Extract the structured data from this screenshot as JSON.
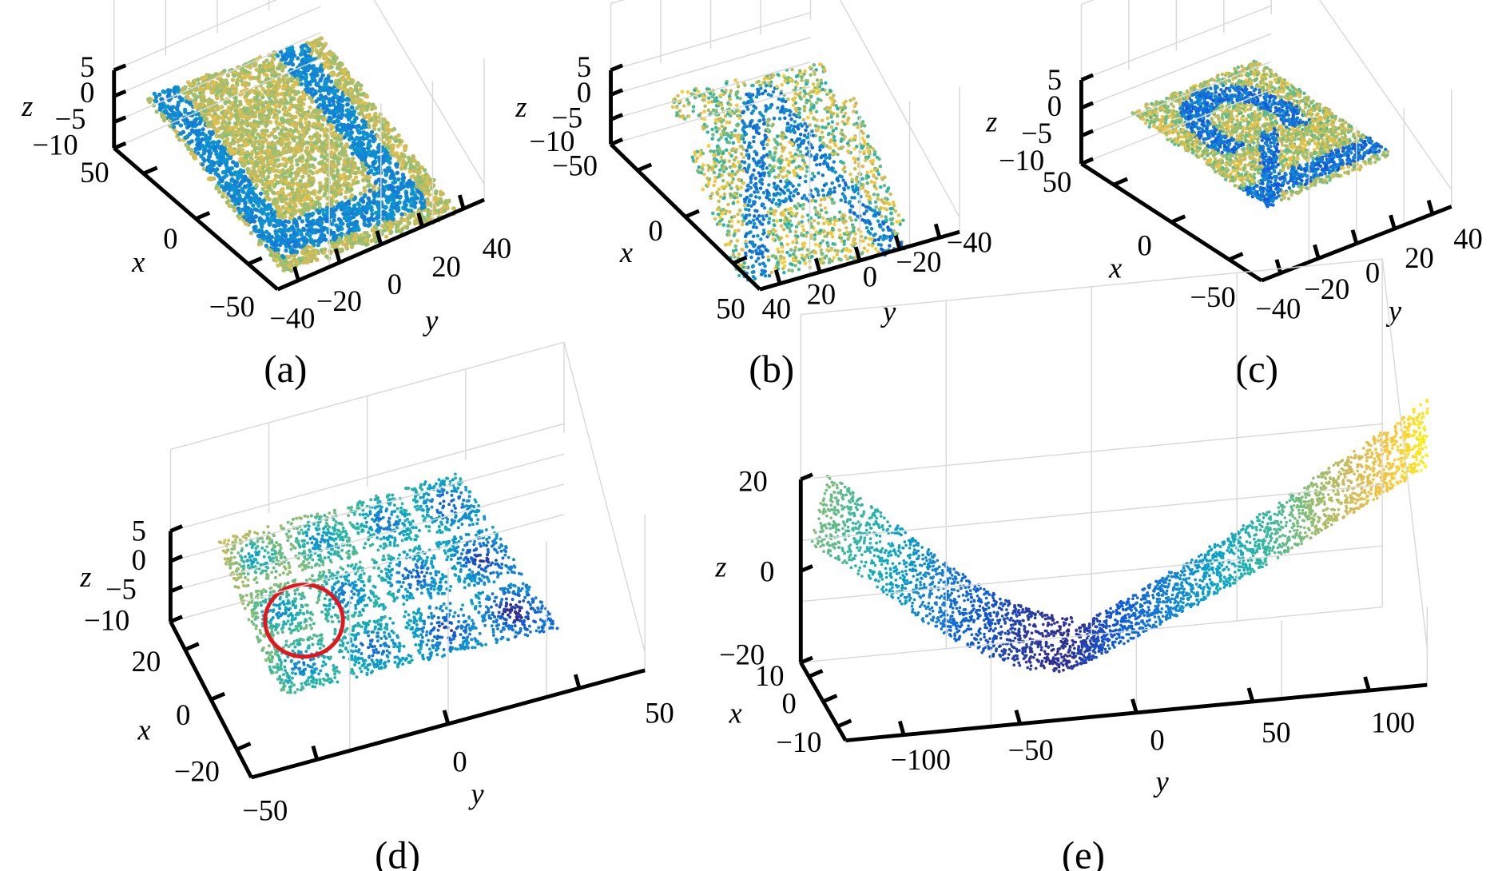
{
  "chart_data": [
    {
      "type": "scatter3d",
      "panel_label": "(a)",
      "colormap": "parula",
      "grid": true,
      "xlabel": "x",
      "ylabel": "y",
      "zlabel": "z",
      "xticks": [
        "50",
        "0",
        "−50"
      ],
      "yticks": [
        "−40",
        "−20",
        "0",
        "20",
        "40"
      ],
      "zticks": [
        "5",
        "0",
        "−5",
        "−10"
      ],
      "xlim": [
        -50,
        50
      ],
      "ylim": [
        -40,
        40
      ],
      "zlim": [
        -10,
        5
      ]
    },
    {
      "type": "scatter3d",
      "panel_label": "(b)",
      "colormap": "parula",
      "grid": true,
      "xlabel": "x",
      "ylabel": "y",
      "zlabel": "z",
      "xticks": [
        "−50",
        "0",
        "50"
      ],
      "yticks": [
        "40",
        "20",
        "0",
        "−20",
        "−40"
      ],
      "zticks": [
        "5",
        "0",
        "−5",
        "−10"
      ],
      "xlim": [
        -50,
        50
      ],
      "ylim": [
        -40,
        40
      ],
      "zlim": [
        -10,
        5
      ]
    },
    {
      "type": "scatter3d",
      "panel_label": "(c)",
      "colormap": "parula",
      "grid": true,
      "xlabel": "x",
      "ylabel": "y",
      "zlabel": "z",
      "xticks": [
        "50",
        "0",
        "−50"
      ],
      "yticks": [
        "−40",
        "−20",
        "0",
        "20",
        "40"
      ],
      "zticks": [
        "5",
        "0",
        "−5",
        "−10"
      ],
      "xlim": [
        -50,
        50
      ],
      "ylim": [
        -40,
        40
      ],
      "zlim": [
        -10,
        5
      ]
    },
    {
      "type": "scatter3d",
      "panel_label": "(d)",
      "colormap": "parula",
      "grid": true,
      "xlabel": "x",
      "ylabel": "y",
      "zlabel": "z",
      "xticks": [
        "20",
        "0",
        "−20"
      ],
      "yticks": [
        "−50",
        "0",
        "50"
      ],
      "zticks": [
        "5",
        "0",
        "−5",
        "−10"
      ],
      "xlim": [
        -20,
        20
      ],
      "ylim": [
        -50,
        50
      ],
      "zlim": [
        -10,
        5
      ],
      "annotation": {
        "shape": "circle",
        "color": "#e8141b"
      }
    },
    {
      "type": "scatter3d",
      "panel_label": "(e)",
      "colormap": "parula",
      "grid": true,
      "xlabel": "x",
      "ylabel": "y",
      "zlabel": "z",
      "xticks": [
        "10",
        "0",
        "−10"
      ],
      "yticks": [
        "−100",
        "−50",
        "0",
        "50",
        "100"
      ],
      "zticks": [
        "20",
        "0",
        "−20"
      ],
      "xlim": [
        -10,
        10
      ],
      "ylim": [
        -120,
        120
      ],
      "zlim": [
        -20,
        20
      ]
    }
  ]
}
